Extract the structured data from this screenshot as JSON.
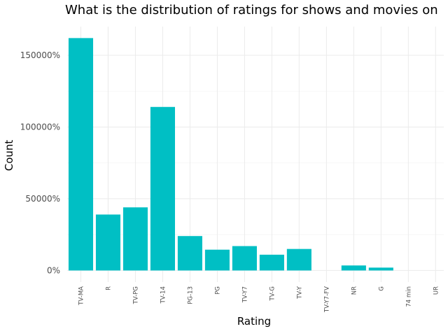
{
  "chart_data": {
    "type": "bar",
    "title": "What is the distribution of ratings for shows and movies on",
    "xlabel": "Rating",
    "ylabel": "Count",
    "categories": [
      "TV-MA",
      "R",
      "TV-PG",
      "TV-14",
      "PG-13",
      "PG",
      "TV-Y7",
      "TV-G",
      "TV-Y",
      "TV-Y7-FV",
      "NR",
      "G",
      "74 min",
      "UR"
    ],
    "values": [
      162000,
      39000,
      44000,
      114000,
      24000,
      14500,
      17000,
      11000,
      15000,
      0,
      3500,
      2000,
      0,
      0
    ],
    "yticks": [
      0,
      50000,
      100000,
      150000
    ],
    "ytick_labels": [
      "0%",
      "50000%",
      "100000%",
      "150000%"
    ],
    "ylim": [
      -8100,
      170000
    ],
    "grid": true,
    "colors": {
      "bar": "#00BFC4",
      "grid": "#EBEBEB",
      "tick_text": "#4D4D4D"
    }
  }
}
